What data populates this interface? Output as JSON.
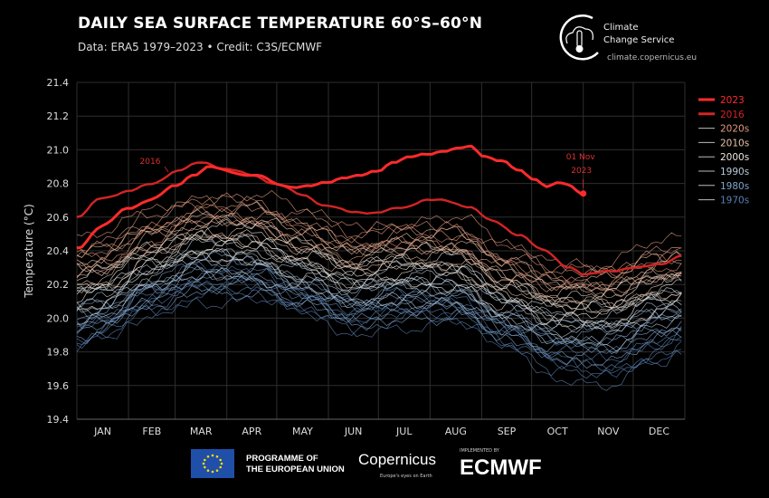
{
  "header": {
    "title": "DAILY SEA SURFACE TEMPERATURE 60°S–60°N",
    "subtitle": "Data: ERA5 1979–2023 • Credit: C3S/ECMWF",
    "brand_name_line1": "Climate",
    "brand_name_line2": "Change Service",
    "brand_url": "climate.copernicus.eu"
  },
  "footer": {
    "eu_line1": "PROGRAMME OF",
    "eu_line2": "THE EUROPEAN UNION",
    "copernicus": "Copernicus",
    "copernicus_tagline": "Europe's eyes on Earth",
    "implemented_by": "IMPLEMENTED BY",
    "ecmwf": "ECMWF"
  },
  "chart_data": {
    "type": "line",
    "title": "DAILY SEA SURFACE TEMPERATURE 60°S–60°N",
    "xlabel": "",
    "ylabel": "Temperature (°C)",
    "ylim": [
      19.4,
      21.4
    ],
    "yticks": [
      "19.4",
      "19.6",
      "19.8",
      "20.0",
      "20.2",
      "20.4",
      "20.6",
      "20.8",
      "21.0",
      "21.2",
      "21.4"
    ],
    "xticks": [
      "JAN",
      "FEB",
      "MAR",
      "APR",
      "MAY",
      "JUN",
      "JUL",
      "AUG",
      "SEP",
      "OCT",
      "NOV",
      "DEC"
    ],
    "x_units": "day of year",
    "xlim": [
      0,
      365
    ],
    "grid": true,
    "legend_position": "right",
    "series": [
      {
        "name": "2023",
        "color": "#ff2b2b",
        "highlight": true,
        "x": [
          0,
          15,
          31,
          45,
          59,
          70,
          80,
          90,
          100,
          110,
          120,
          130,
          140,
          150,
          160,
          170,
          180,
          190,
          200,
          210,
          220,
          228,
          236,
          245,
          255,
          265,
          275,
          282,
          290,
          295,
          300,
          304
        ],
        "y": [
          20.42,
          20.55,
          20.65,
          20.7,
          20.78,
          20.85,
          20.9,
          20.88,
          20.86,
          20.85,
          20.8,
          20.78,
          20.78,
          20.8,
          20.83,
          20.84,
          20.87,
          20.93,
          20.96,
          20.98,
          21.0,
          21.01,
          21.02,
          20.96,
          20.93,
          20.87,
          20.82,
          20.78,
          20.8,
          20.79,
          20.76,
          20.74
        ]
      },
      {
        "name": "2016",
        "color": "#d42424",
        "highlight": true,
        "x": [
          0,
          15,
          31,
          45,
          60,
          75,
          90,
          105,
          120,
          135,
          150,
          165,
          180,
          195,
          210,
          220,
          235,
          250,
          265,
          280,
          295,
          305,
          320,
          335,
          350,
          365
        ],
        "y": [
          20.6,
          20.72,
          20.76,
          20.8,
          20.87,
          20.92,
          20.88,
          20.85,
          20.8,
          20.74,
          20.67,
          20.63,
          20.62,
          20.65,
          20.7,
          20.7,
          20.67,
          20.58,
          20.5,
          20.4,
          20.3,
          20.25,
          20.28,
          20.3,
          20.33,
          20.38
        ]
      },
      {
        "name": "2020s",
        "color": "#e39a80",
        "x": [
          15,
          45,
          74,
          105,
          135,
          166,
          196,
          227,
          258,
          288,
          319,
          349
        ],
        "y": [
          20.4,
          20.55,
          20.65,
          20.65,
          20.55,
          20.45,
          20.5,
          20.5,
          20.35,
          20.25,
          20.25,
          20.35
        ]
      },
      {
        "name": "2010s",
        "color": "#e9c2aa",
        "x": [
          15,
          45,
          74,
          105,
          135,
          166,
          196,
          227,
          258,
          288,
          319,
          349
        ],
        "y": [
          20.3,
          20.45,
          20.55,
          20.55,
          20.45,
          20.35,
          20.4,
          20.4,
          20.25,
          20.15,
          20.15,
          20.25
        ]
      },
      {
        "name": "2000s",
        "color": "#ece7e0",
        "x": [
          15,
          45,
          74,
          105,
          135,
          166,
          196,
          227,
          258,
          288,
          319,
          349
        ],
        "y": [
          20.2,
          20.35,
          20.45,
          20.45,
          20.35,
          20.25,
          20.3,
          20.3,
          20.15,
          20.05,
          20.05,
          20.15
        ]
      },
      {
        "name": "1990s",
        "color": "#b7cadb",
        "x": [
          15,
          45,
          74,
          105,
          135,
          166,
          196,
          227,
          258,
          288,
          319,
          349
        ],
        "y": [
          20.1,
          20.25,
          20.35,
          20.35,
          20.25,
          20.15,
          20.2,
          20.2,
          20.05,
          19.95,
          19.95,
          20.05
        ]
      },
      {
        "name": "1980s",
        "color": "#7fa3c9",
        "x": [
          15,
          45,
          74,
          105,
          135,
          166,
          196,
          227,
          258,
          288,
          319,
          349
        ],
        "y": [
          20.0,
          20.15,
          20.25,
          20.25,
          20.15,
          20.05,
          20.1,
          20.1,
          19.95,
          19.85,
          19.85,
          19.95
        ]
      },
      {
        "name": "1970s",
        "color": "#5a7fb1",
        "x": [
          15,
          45,
          74,
          105,
          135,
          166,
          196,
          227,
          258,
          288,
          319,
          349
        ],
        "y": [
          19.95,
          20.1,
          20.2,
          20.2,
          20.1,
          20.0,
          20.05,
          20.05,
          19.9,
          19.75,
          19.7,
          19.8
        ]
      }
    ],
    "annotations": [
      {
        "text": "2016",
        "series": "2016"
      },
      {
        "text_line1": "01 Nov",
        "text_line2": "2023",
        "series": "2023"
      }
    ]
  }
}
